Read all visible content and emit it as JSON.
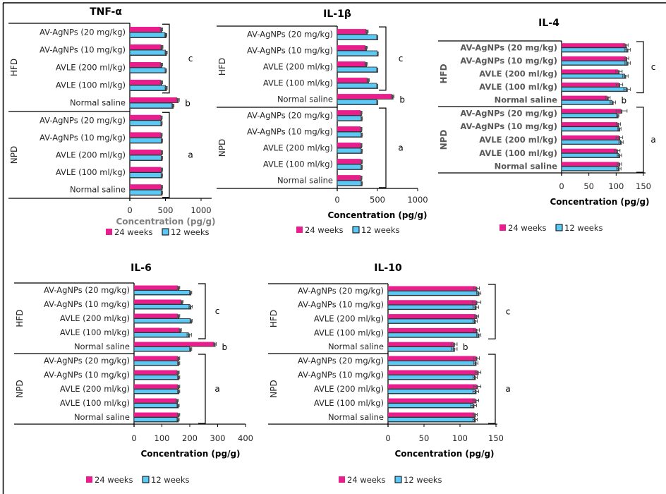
{
  "colors": {
    "series_24_weeks": "#E91E8C",
    "series_12_weeks": "#5BC8F5",
    "bar_outline": "#262626",
    "gray_text": "#7f7f7f",
    "dark_gray_text": "#595959",
    "frame": "#000000"
  },
  "chart_data": [
    {
      "id": "tnf",
      "type": "bar",
      "orientation": "horizontal",
      "title": "TNF-α",
      "xlabel": "Concentration  (pg/g)",
      "ylabel": "",
      "xlim": [
        0,
        1000
      ],
      "xticks": [
        0,
        500,
        1000
      ],
      "grid": false,
      "legend_position": "bottom",
      "groups": [
        {
          "name": "HFD",
          "categories": [
            "AV-AgNPs (20 mg/kg)",
            "AV-AgNPs (10 mg/kg)",
            "AVLE (200 ml/kg)",
            "AVLE (100 ml/kg)",
            "Normal saline"
          ],
          "significance": [
            "c",
            "c",
            "c",
            "c",
            "b"
          ]
        },
        {
          "name": "NPD",
          "categories": [
            "AV-AgNPs (20 mg/kg)",
            "AV-AgNPs (10 mg/kg)",
            "AVLE (200 ml/kg)",
            "AVLE (100 ml/kg)",
            "Normal saline"
          ],
          "significance": [
            "a",
            "a",
            "a",
            "a",
            "a"
          ]
        }
      ],
      "series": [
        {
          "name": "24 weeks",
          "values": [
            445,
            450,
            445,
            445,
            675,
            445,
            445,
            450,
            450,
            450
          ],
          "errors": [
            15,
            15,
            15,
            15,
            20,
            10,
            10,
            10,
            10,
            10
          ]
        },
        {
          "name": "12 weeks",
          "values": [
            505,
            510,
            505,
            510,
            605,
            445,
            450,
            450,
            450,
            450
          ],
          "errors": [
            15,
            15,
            10,
            15,
            15,
            10,
            10,
            10,
            10,
            10
          ]
        }
      ],
      "bracket_labels": [
        {
          "label": "c",
          "rows": [
            0,
            3
          ]
        },
        {
          "label": "b",
          "rows": [
            4,
            4
          ]
        },
        {
          "label": "a",
          "rows": [
            5,
            9
          ]
        }
      ]
    },
    {
      "id": "il1b",
      "type": "bar",
      "orientation": "horizontal",
      "title": "IL-1β",
      "xlabel": "Concentration  (pg/g)",
      "ylabel": "",
      "xlim": [
        0,
        1000
      ],
      "xticks": [
        0,
        500,
        1000
      ],
      "grid": false,
      "legend_position": "bottom",
      "groups": [
        {
          "name": "HFD",
          "categories": [
            "AV-AgNPs (20 mg/kg)",
            "AV-AgNPs (10 mg/kg)",
            "AVLE (200 ml/kg)",
            "AVLE (100 ml/kg)",
            "Normal saline"
          ],
          "significance": [
            "c",
            "c",
            "c",
            "c",
            "b"
          ]
        },
        {
          "name": "NPD",
          "categories": [
            "AV-AgNPs (20 mg/kg)",
            "AV-AgNPs (10 mg/kg)",
            "AVLE (200 ml/kg)",
            "AVLE (100 ml/kg)",
            "Normal saline"
          ],
          "significance": [
            "a",
            "a",
            "a",
            "a",
            "a"
          ]
        }
      ],
      "series": [
        {
          "name": "24 weeks",
          "values": [
            370,
            360,
            360,
            385,
            690,
            300,
            300,
            300,
            305,
            300
          ],
          "errors": [
            15,
            15,
            15,
            15,
            15,
            8,
            8,
            8,
            8,
            8
          ]
        },
        {
          "name": "12 weeks",
          "values": [
            500,
            505,
            500,
            500,
            500,
            305,
            305,
            305,
            305,
            305
          ],
          "errors": [
            5,
            5,
            5,
            5,
            5,
            8,
            8,
            8,
            8,
            8
          ]
        }
      ],
      "bracket_labels": [
        {
          "label": "c",
          "rows": [
            0,
            3
          ]
        },
        {
          "label": "b",
          "rows": [
            4,
            4
          ]
        },
        {
          "label": "a",
          "rows": [
            5,
            9
          ]
        }
      ]
    },
    {
      "id": "il4",
      "type": "bar",
      "orientation": "horizontal",
      "title": "IL-4",
      "xlabel": "Concentration  (pg/g)",
      "ylabel": "",
      "xlim": [
        0,
        150
      ],
      "xticks": [
        0,
        50,
        100,
        150
      ],
      "grid": false,
      "legend_position": "bottom",
      "groups": [
        {
          "name": "HFD",
          "categories": [
            "AV-AgNPs (20 mg/kg)",
            "AV-AgNPs (10 mg/kg)",
            "AVLE (200 ml/kg)",
            "AVLE (100 ml/kg)",
            "Normal saline"
          ],
          "significance": [
            "c",
            "c",
            "c",
            "c",
            "b"
          ]
        },
        {
          "name": "NPD",
          "categories": [
            "AV-AgNPs (20 mg/kg)",
            "AV-AgNPs (10 mg/kg)",
            "AVLE (200 ml/kg)",
            "AVLE (100 ml/kg)",
            "Normal saline"
          ],
          "significance": [
            "a",
            "a",
            "a",
            "a",
            "a"
          ]
        }
      ],
      "series": [
        {
          "name": "24 weeks",
          "values": [
            118,
            119,
            105,
            106,
            85,
            110,
            104,
            106,
            102,
            106
          ],
          "errors": [
            4,
            4,
            6,
            6,
            4,
            10,
            4,
            6,
            5,
            4
          ]
        },
        {
          "name": "12 weeks",
          "values": [
            121,
            121,
            117,
            120,
            94,
            103,
            106,
            109,
            106,
            105
          ],
          "errors": [
            5,
            5,
            5,
            6,
            5,
            2,
            3,
            4,
            4,
            4
          ]
        }
      ],
      "bracket_labels": [
        {
          "label": "c",
          "rows": [
            0,
            3
          ]
        },
        {
          "label": "b",
          "rows": [
            4,
            4
          ]
        },
        {
          "label": "a",
          "rows": [
            5,
            9
          ]
        }
      ]
    },
    {
      "id": "il6",
      "type": "bar",
      "orientation": "horizontal",
      "title": "IL-6",
      "xlabel": "Concentration (pg/g)",
      "ylabel": "",
      "xlim": [
        0,
        400
      ],
      "xticks": [
        0,
        100,
        200,
        300,
        400
      ],
      "grid": false,
      "legend_position": "bottom",
      "groups": [
        {
          "name": "HFD",
          "categories": [
            "AV-AgNPs (20 mg/kg)",
            "AV-AgNPs (10 mg/kg)",
            "AVLE (200 ml/kg)",
            "AVLE (100 ml/kg)",
            "Normal saline"
          ],
          "significance": [
            "c",
            "c",
            "c",
            "c",
            "b"
          ]
        },
        {
          "name": "NPD",
          "categories": [
            "AV-AgNPs (20 mg/kg)",
            "AV-AgNPs (10 mg/kg)",
            "AVLE (200 ml/kg)",
            "AVLE (100 ml/kg)",
            "Normal saline"
          ],
          "significance": [
            "a",
            "a",
            "a",
            "a",
            "a"
          ]
        }
      ],
      "series": [
        {
          "name": "24 weeks",
          "values": [
            160,
            172,
            160,
            166,
            290,
            160,
            158,
            160,
            155,
            160
          ],
          "errors": [
            4,
            4,
            4,
            4,
            5,
            4,
            4,
            4,
            4,
            4
          ]
        },
        {
          "name": "12 weeks",
          "values": [
            203,
            203,
            205,
            198,
            203,
            160,
            160,
            160,
            158,
            158
          ],
          "errors": [
            4,
            6,
            4,
            8,
            4,
            4,
            4,
            4,
            4,
            4
          ]
        }
      ],
      "bracket_labels": [
        {
          "label": "c",
          "rows": [
            0,
            3
          ]
        },
        {
          "label": "b",
          "rows": [
            4,
            4
          ]
        },
        {
          "label": "a",
          "rows": [
            5,
            9
          ]
        }
      ]
    },
    {
      "id": "il10",
      "type": "bar",
      "orientation": "horizontal",
      "title": "IL-10",
      "xlabel": "Concentration (pg/g)",
      "ylabel": "",
      "xlim": [
        0,
        150
      ],
      "xticks": [
        0,
        50,
        100,
        150
      ],
      "grid": false,
      "legend_position": "bottom",
      "groups": [
        {
          "name": "HFD",
          "categories": [
            "AV-AgNPs (20 mg/kg)",
            "AV-AgNPs (10 mg/kg)",
            "AVLE (200 ml/kg)",
            "AVLE (100 ml/kg)",
            "Normal saline"
          ],
          "significance": [
            "c",
            "c",
            "c",
            "c",
            "b"
          ]
        },
        {
          "name": "NPD",
          "categories": [
            "AV-AgNPs (20 mg/kg)",
            "AV-AgNPs (10 mg/kg)",
            "AVLE (200 ml/kg)",
            "AVLE (100 ml/kg)",
            "Normal saline"
          ],
          "significance": [
            "a",
            "a",
            "a",
            "a",
            "a"
          ]
        }
      ],
      "series": [
        {
          "name": "24 weeks",
          "values": [
            123,
            123,
            123,
            123,
            92,
            123,
            125,
            124,
            122,
            121
          ],
          "errors": [
            4,
            6,
            3,
            4,
            4,
            4,
            4,
            5,
            4,
            3
          ]
        },
        {
          "name": "12 weeks",
          "values": [
            126,
            122,
            121,
            126,
            92,
            122,
            121,
            122,
            119,
            121
          ],
          "errors": [
            3,
            4,
            3,
            3,
            4,
            3,
            3,
            4,
            4,
            3
          ]
        }
      ],
      "bracket_labels": [
        {
          "label": "c",
          "rows": [
            0,
            3
          ]
        },
        {
          "label": "b",
          "rows": [
            4,
            4
          ]
        },
        {
          "label": "a",
          "rows": [
            5,
            9
          ]
        }
      ]
    }
  ]
}
